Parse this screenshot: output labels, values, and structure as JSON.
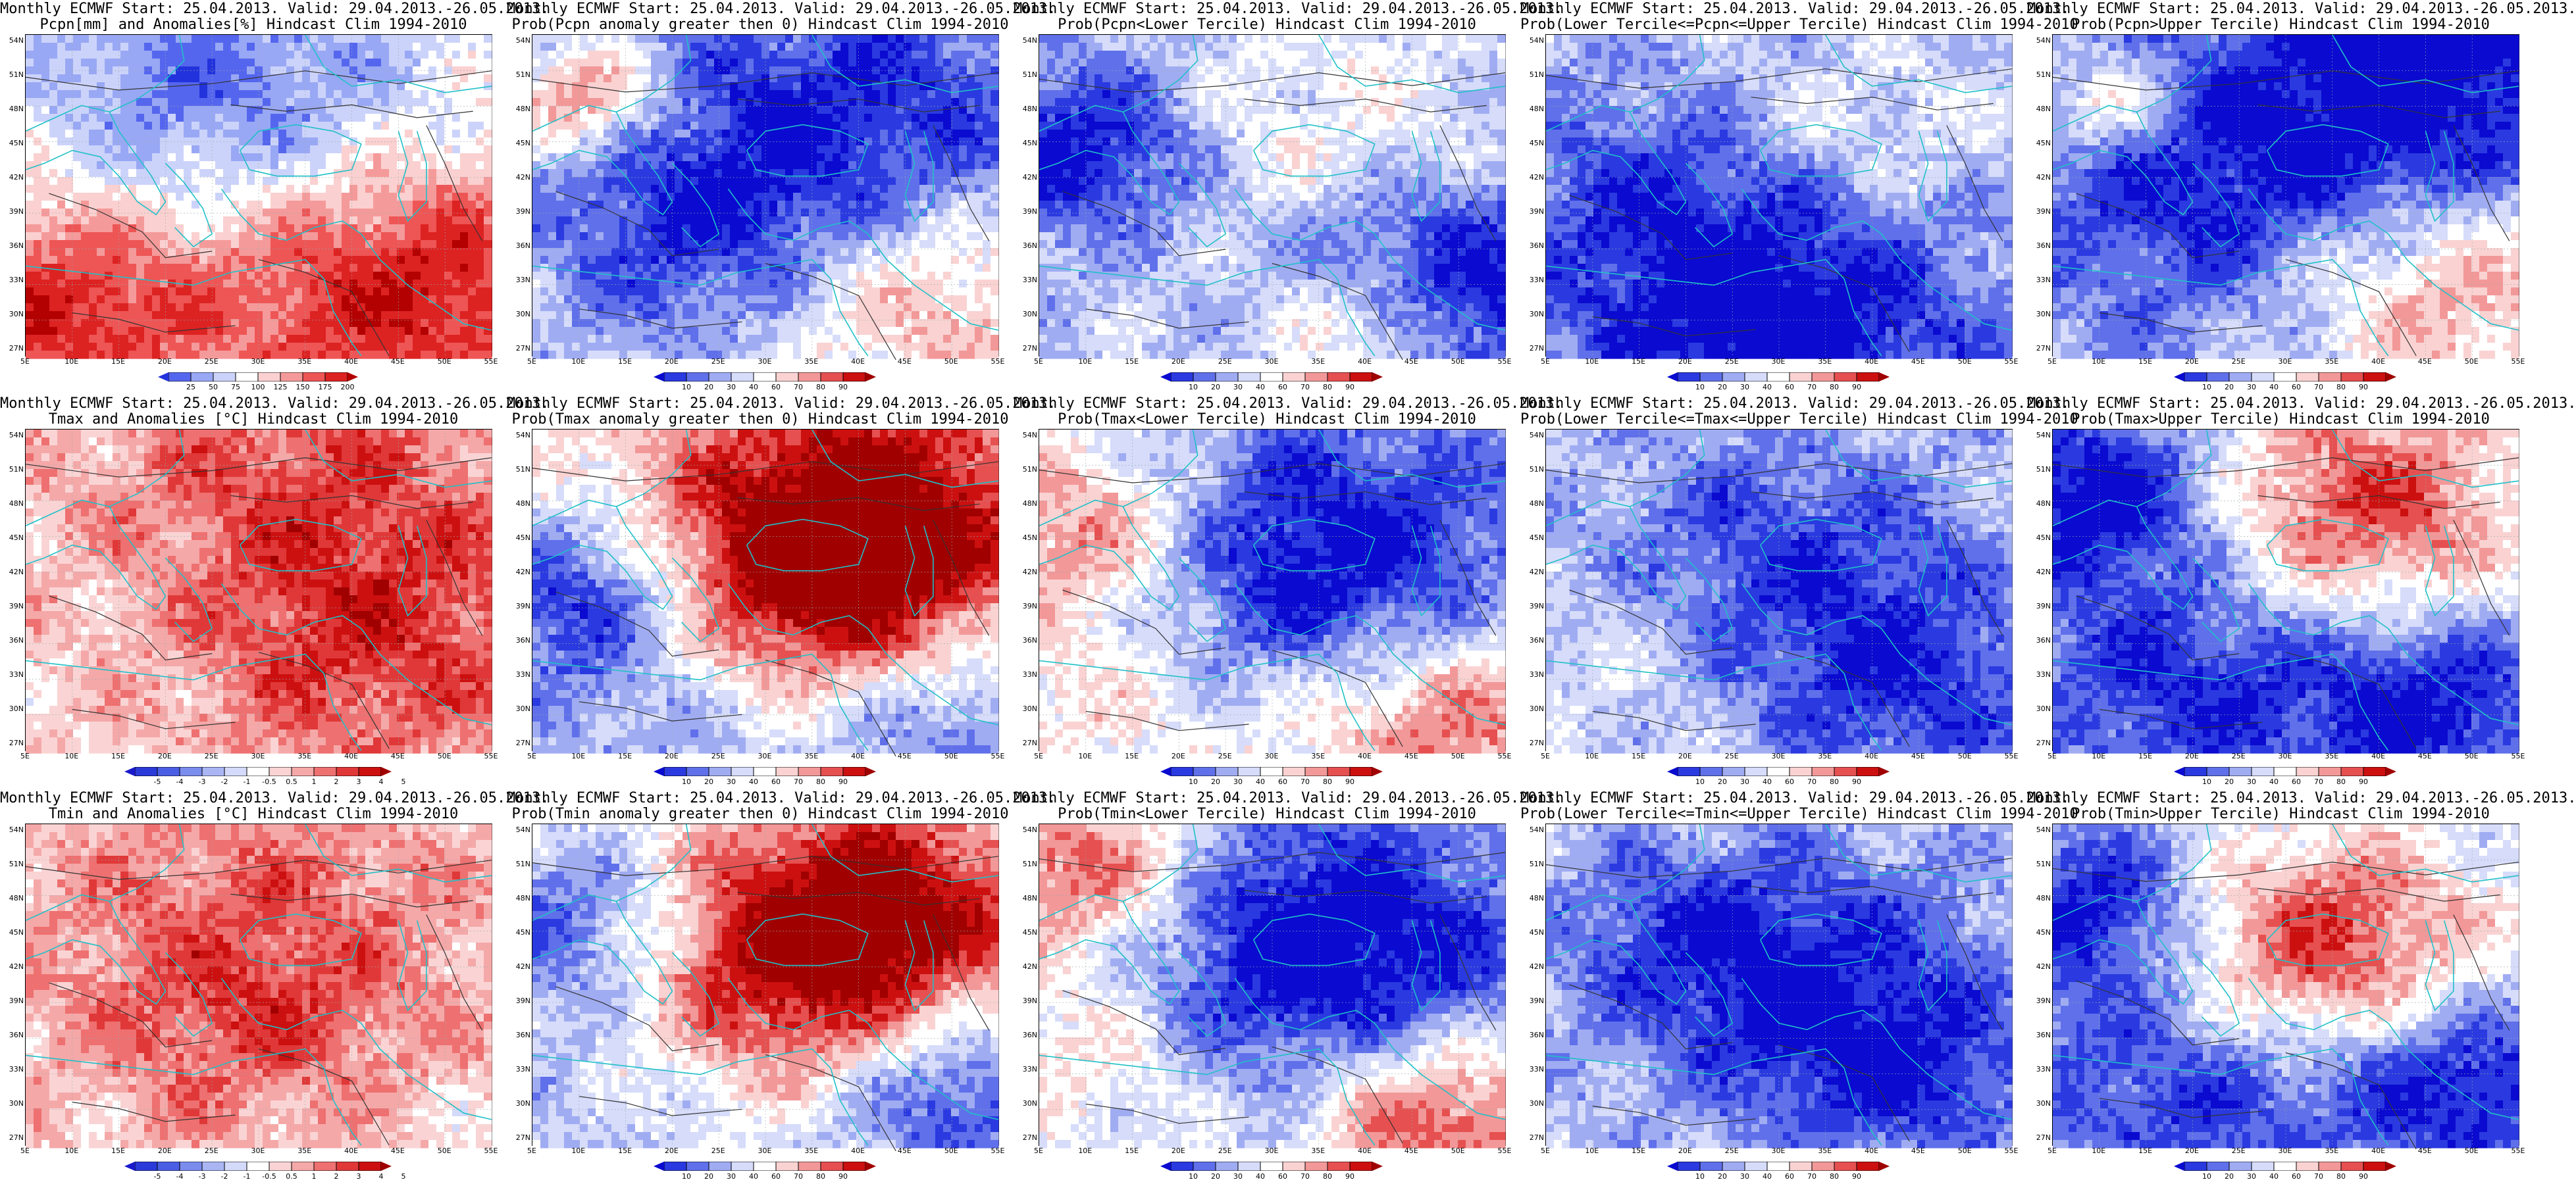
{
  "scales": {
    "precip": {
      "labels": [
        "25",
        "50",
        "75",
        "100",
        "125",
        "150",
        "175",
        "200"
      ],
      "colors": [
        "#2233dd",
        "#5566ee",
        "#99a8f4",
        "#ccd3fa",
        "#ffffff",
        "#fbd0d0",
        "#f59a9a",
        "#ee5555",
        "#dd2222",
        "#b30000"
      ]
    },
    "anom": {
      "labels": [
        "-5",
        "-4",
        "-3",
        "-2",
        "-1",
        "-0.5",
        "0.5",
        "1",
        "2",
        "3",
        "4",
        "5"
      ],
      "colors": [
        "#1a1acc",
        "#2a3ad8",
        "#4a5ee4",
        "#7a8cec",
        "#aab6f4",
        "#d4daf9",
        "#ffffff",
        "#fad4d4",
        "#f5a8a8",
        "#ee7070",
        "#e03838",
        "#cc1010",
        "#a00000"
      ]
    },
    "prob": {
      "labels": [
        "10",
        "20",
        "30",
        "40",
        "60",
        "70",
        "80",
        "90"
      ],
      "colors": [
        "#0a0ad0",
        "#2a3ae0",
        "#6070ea",
        "#a0acf2",
        "#d6dcfa",
        "#ffffff",
        "#fad2d2",
        "#f29898",
        "#e65050",
        "#cc1010",
        "#a00000"
      ]
    }
  },
  "axes": {
    "lat_labels": [
      "54N",
      "51N",
      "48N",
      "45N",
      "42N",
      "39N",
      "36N",
      "33N",
      "30N",
      "27N"
    ],
    "lon_labels": [
      "5E",
      "10E",
      "15E",
      "20E",
      "25E",
      "30E",
      "35E",
      "40E",
      "45E",
      "50E",
      "55E"
    ]
  },
  "panels": [
    {
      "name": "pcpn-anomalies",
      "title1": "Monthly ECMWF Start: 25.04.2013. Valid: 29.04.2013.-26.05.2013.",
      "title2": "Pcpn[mm] and Anomalies[%] Hindcast Clim 1994-2010",
      "scale": "precip",
      "seed": 11,
      "bias": 0.0,
      "blobs": [
        [
          0.08,
          0.85,
          0.22,
          0.9
        ],
        [
          0.82,
          0.75,
          0.3,
          1.1
        ],
        [
          0.6,
          0.25,
          0.35,
          -0.6
        ],
        [
          0.3,
          0.1,
          0.25,
          -0.4
        ]
      ]
    },
    {
      "name": "pcpn-prob-positive",
      "title1": "Monthly ECMWF Start: 25.04.2013. Valid: 29.04.2013.-26.05.2013.",
      "title2": "Prob(Pcpn anomaly greater then 0) Hindcast Clim 1994-2010",
      "scale": "prob",
      "seed": 23,
      "bias": -0.2,
      "blobs": [
        [
          0.85,
          0.8,
          0.25,
          0.8
        ],
        [
          0.12,
          0.2,
          0.12,
          0.9
        ],
        [
          0.7,
          0.3,
          0.4,
          -0.8
        ],
        [
          0.35,
          0.6,
          0.25,
          -0.5
        ]
      ]
    },
    {
      "name": "pcpn-prob-lower",
      "title1": "Monthly ECMWF Start: 25.04.2013. Valid: 29.04.2013.-26.05.2013.",
      "title2": "Prob(Pcpn<Lower Tercile) Hindcast Clim 1994-2010",
      "scale": "prob",
      "seed": 37,
      "bias": -0.3,
      "blobs": [
        [
          0.1,
          0.35,
          0.2,
          -0.9
        ],
        [
          0.85,
          0.8,
          0.25,
          -1.0
        ],
        [
          0.55,
          0.35,
          0.3,
          0.4
        ],
        [
          0.7,
          0.92,
          0.15,
          0.9
        ]
      ]
    },
    {
      "name": "pcpn-prob-middle",
      "title1": "Monthly ECMWF Start: 25.04.2013. Valid: 29.04.2013.-26.05.2013.",
      "title2": "Prob(Lower Tercile<=Pcpn<=Upper Tercile) Hindcast Clim 1994-2010",
      "scale": "prob",
      "seed": 41,
      "bias": -0.35,
      "blobs": [
        [
          0.5,
          0.9,
          0.3,
          -0.9
        ],
        [
          0.2,
          0.5,
          0.25,
          -0.4
        ],
        [
          0.7,
          0.3,
          0.2,
          0.3
        ]
      ]
    },
    {
      "name": "pcpn-prob-upper",
      "title1": "Monthly ECMWF Start: 25.04.2013. Valid: 29.04.2013.-26.05.2013.",
      "title2": "Prob(Pcpn>Upper Tercile) Hindcast Clim 1994-2010",
      "scale": "prob",
      "seed": 53,
      "bias": -0.35,
      "blobs": [
        [
          0.85,
          0.8,
          0.25,
          0.8
        ],
        [
          0.8,
          0.15,
          0.3,
          -0.9
        ],
        [
          0.3,
          0.5,
          0.3,
          -0.6
        ],
        [
          0.12,
          0.22,
          0.1,
          0.7
        ]
      ]
    },
    {
      "name": "tmax-anomalies",
      "title1": "Monthly ECMWF Start: 25.04.2013. Valid: 29.04.2013.-26.05.2013.",
      "title2": "Tmax and Anomalies [°C] Hindcast Clim 1994-2010",
      "scale": "anom",
      "seed": 61,
      "bias": 0.15,
      "blobs": [
        [
          0.6,
          0.2,
          0.35,
          0.5
        ],
        [
          0.75,
          0.7,
          0.3,
          0.5
        ],
        [
          0.3,
          0.5,
          0.2,
          -0.1
        ]
      ]
    },
    {
      "name": "tmax-prob-positive",
      "title1": "Monthly ECMWF Start: 25.04.2013. Valid: 29.04.2013.-26.05.2013.",
      "title2": "Prob(Tmax anomaly greater then 0) Hindcast Clim 1994-2010",
      "scale": "prob",
      "seed": 71,
      "bias": 0.05,
      "blobs": [
        [
          0.7,
          0.25,
          0.3,
          1.1
        ],
        [
          0.55,
          0.55,
          0.25,
          0.9
        ],
        [
          0.1,
          0.5,
          0.2,
          -0.9
        ],
        [
          0.3,
          0.85,
          0.3,
          -0.6
        ],
        [
          0.9,
          0.9,
          0.2,
          -0.7
        ]
      ]
    },
    {
      "name": "tmax-prob-lower",
      "title1": "Monthly ECMWF Start: 25.04.2013. Valid: 29.04.2013.-26.05.2013.",
      "title2": "Prob(Tmax<Lower Tercile) Hindcast Clim 1994-2010",
      "scale": "prob",
      "seed": 83,
      "bias": -0.2,
      "blobs": [
        [
          0.6,
          0.45,
          0.35,
          -1.1
        ],
        [
          0.1,
          0.3,
          0.2,
          0.9
        ],
        [
          0.15,
          0.8,
          0.25,
          0.5
        ],
        [
          0.85,
          0.9,
          0.25,
          1.0
        ]
      ]
    },
    {
      "name": "tmax-prob-middle",
      "title1": "Monthly ECMWF Start: 25.04.2013. Valid: 29.04.2013.-26.05.2013.",
      "title2": "Prob(Lower Tercile<=Tmax<=Upper Tercile) Hindcast Clim 1994-2010",
      "scale": "prob",
      "seed": 97,
      "bias": -0.25,
      "blobs": [
        [
          0.5,
          0.4,
          0.3,
          -0.6
        ],
        [
          0.8,
          0.8,
          0.25,
          -0.6
        ],
        [
          0.2,
          0.7,
          0.2,
          0.2
        ]
      ]
    },
    {
      "name": "tmax-prob-upper",
      "title1": "Monthly ECMWF Start: 25.04.2013. Valid: 29.04.2013.-26.05.2013.",
      "title2": "Prob(Tmax>Upper Tercile) Hindcast Clim 1994-2010",
      "scale": "prob",
      "seed": 103,
      "bias": -0.2,
      "blobs": [
        [
          0.65,
          0.25,
          0.25,
          1.0
        ],
        [
          0.1,
          0.2,
          0.2,
          -1.0
        ],
        [
          0.3,
          0.8,
          0.3,
          -0.8
        ],
        [
          0.85,
          0.85,
          0.2,
          -0.8
        ]
      ]
    },
    {
      "name": "tmin-anomalies",
      "title1": "Monthly ECMWF Start: 25.04.2013. Valid: 29.04.2013.-26.05.2013.",
      "title2": "Tmin and Anomalies [°C] Hindcast Clim 1994-2010",
      "scale": "anom",
      "seed": 109,
      "bias": 0.1,
      "blobs": [
        [
          0.5,
          0.25,
          0.4,
          0.4
        ],
        [
          0.5,
          0.6,
          0.25,
          0.35
        ],
        [
          0.2,
          0.8,
          0.25,
          0.05
        ]
      ]
    },
    {
      "name": "tmin-prob-positive",
      "title1": "Monthly ECMWF Start: 25.04.2013. Valid: 29.04.2013.-26.05.2013.",
      "title2": "Prob(Tmin anomaly greater then 0) Hindcast Clim 1994-2010",
      "scale": "prob",
      "seed": 127,
      "bias": 0.0,
      "blobs": [
        [
          0.55,
          0.45,
          0.3,
          1.3
        ],
        [
          0.8,
          0.2,
          0.2,
          0.6
        ],
        [
          0.1,
          0.3,
          0.2,
          -0.9
        ],
        [
          0.2,
          0.8,
          0.3,
          -0.5
        ],
        [
          0.9,
          0.85,
          0.2,
          -1.0
        ]
      ]
    },
    {
      "name": "tmin-prob-lower",
      "title1": "Monthly ECMWF Start: 25.04.2013. Valid: 29.04.2013.-26.05.2013.",
      "title2": "Prob(Tmin<Lower Tercile) Hindcast Clim 1994-2010",
      "scale": "prob",
      "seed": 131,
      "bias": -0.15,
      "blobs": [
        [
          0.6,
          0.4,
          0.35,
          -1.2
        ],
        [
          0.1,
          0.15,
          0.2,
          1.0
        ],
        [
          0.15,
          0.7,
          0.2,
          0.5
        ],
        [
          0.85,
          0.9,
          0.2,
          1.1
        ]
      ]
    },
    {
      "name": "tmin-prob-middle",
      "title1": "Monthly ECMWF Start: 25.04.2013. Valid: 29.04.2013.-26.05.2013.",
      "title2": "Prob(Lower Tercile<=Tmin<=Upper Tercile) Hindcast Clim 1994-2010",
      "scale": "prob",
      "seed": 139,
      "bias": -0.25,
      "blobs": [
        [
          0.55,
          0.5,
          0.3,
          -0.8
        ],
        [
          0.25,
          0.3,
          0.2,
          -0.3
        ],
        [
          0.8,
          0.8,
          0.2,
          -0.5
        ]
      ]
    },
    {
      "name": "tmin-prob-upper",
      "title1": "Monthly ECMWF Start: 25.04.2013. Valid: 29.04.2013.-26.05.2013.",
      "title2": "Prob(Tmin>Upper Tercile) Hindcast Clim 1994-2010",
      "scale": "prob",
      "seed": 149,
      "bias": -0.2,
      "blobs": [
        [
          0.55,
          0.4,
          0.25,
          1.2
        ],
        [
          0.1,
          0.25,
          0.2,
          -0.9
        ],
        [
          0.3,
          0.8,
          0.3,
          -0.8
        ],
        [
          0.9,
          0.8,
          0.2,
          -0.9
        ]
      ]
    }
  ]
}
